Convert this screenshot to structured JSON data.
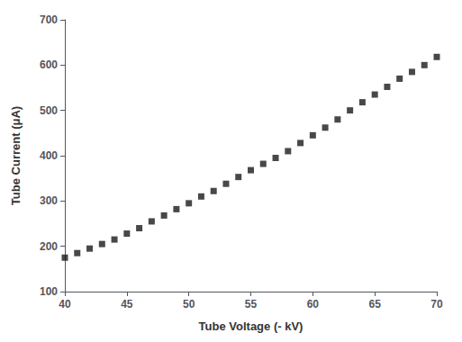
{
  "chart_data": {
    "type": "scatter",
    "xlabel": "Tube Voltage (- kV)",
    "ylabel": "Tube Current (μA)",
    "x": [
      40,
      41,
      42,
      43,
      44,
      45,
      46,
      47,
      48,
      49,
      50,
      51,
      52,
      53,
      54,
      55,
      56,
      57,
      58,
      59,
      60,
      61,
      62,
      63,
      64,
      65,
      66,
      67,
      68,
      69,
      70
    ],
    "values": [
      175,
      185,
      195,
      205,
      215,
      228,
      240,
      255,
      268,
      282,
      295,
      310,
      322,
      338,
      353,
      368,
      382,
      395,
      410,
      428,
      445,
      462,
      480,
      500,
      518,
      535,
      552,
      570,
      585,
      600,
      618
    ],
    "xlim": [
      40,
      70
    ],
    "ylim": [
      100,
      700
    ],
    "xticks": [
      40,
      45,
      50,
      55,
      60,
      65,
      70
    ],
    "yticks": [
      100,
      200,
      300,
      400,
      500,
      600,
      700
    ],
    "marker": "square",
    "color": "#1a1a1a",
    "grid": false
  }
}
